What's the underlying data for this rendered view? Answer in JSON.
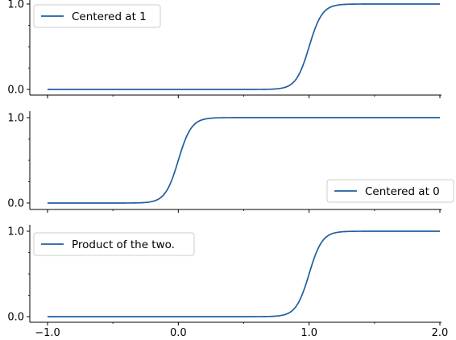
{
  "colors": {
    "series": "#1f5fa0",
    "axis": "#000000",
    "legend_border": "#cccccc"
  },
  "chart_data": [
    {
      "type": "line",
      "title": "",
      "xlabel": "",
      "ylabel": "",
      "xlim": [
        -1.0,
        2.0
      ],
      "ylim": [
        0.0,
        1.0
      ],
      "x_ticks": [
        "-1.0",
        "0.0",
        "1.0",
        "2.0"
      ],
      "y_ticks": [
        "0.0",
        "1.0"
      ],
      "show_x_tick_labels": false,
      "grid": false,
      "legend_position": "top-left",
      "series": [
        {
          "name": "Centered at 1",
          "function": "sigmoid",
          "center": 1.0,
          "steepness": 20,
          "x": [
            -1.0,
            0.5,
            0.75,
            0.85,
            0.9,
            0.95,
            1.0,
            1.05,
            1.1,
            1.15,
            1.25,
            1.5,
            2.0
          ],
          "y": [
            0.0,
            0.0,
            0.007,
            0.047,
            0.119,
            0.269,
            0.5,
            0.731,
            0.881,
            0.953,
            0.993,
            1.0,
            1.0
          ]
        }
      ]
    },
    {
      "type": "line",
      "title": "",
      "xlabel": "",
      "ylabel": "",
      "xlim": [
        -1.0,
        2.0
      ],
      "ylim": [
        0.0,
        1.0
      ],
      "x_ticks": [
        "-1.0",
        "0.0",
        "1.0",
        "2.0"
      ],
      "y_ticks": [
        "0.0",
        "1.0"
      ],
      "show_x_tick_labels": false,
      "grid": false,
      "legend_position": "bottom-right",
      "series": [
        {
          "name": "Centered at 0",
          "function": "sigmoid",
          "center": 0.0,
          "steepness": 20,
          "x": [
            -1.0,
            -0.5,
            -0.25,
            -0.15,
            -0.1,
            -0.05,
            0.0,
            0.05,
            0.1,
            0.15,
            0.25,
            0.5,
            2.0
          ],
          "y": [
            0.0,
            0.0,
            0.007,
            0.047,
            0.119,
            0.269,
            0.5,
            0.731,
            0.881,
            0.953,
            0.993,
            1.0,
            1.0
          ]
        }
      ]
    },
    {
      "type": "line",
      "title": "",
      "xlabel": "",
      "ylabel": "",
      "xlim": [
        -1.0,
        2.0
      ],
      "ylim": [
        0.0,
        1.0
      ],
      "x_ticks": [
        "-1.0",
        "0.0",
        "1.0",
        "2.0"
      ],
      "y_ticks": [
        "0.0",
        "1.0"
      ],
      "show_x_tick_labels": true,
      "grid": false,
      "legend_position": "top-left",
      "series": [
        {
          "name": "Product of the two.",
          "function": "product_of_sigmoids",
          "centers": [
            1.0,
            0.0
          ],
          "steepness": 20,
          "x": [
            -1.0,
            0.5,
            0.75,
            0.85,
            0.9,
            0.95,
            1.0,
            1.05,
            1.1,
            1.15,
            1.25,
            1.5,
            2.0
          ],
          "y": [
            0.0,
            0.0,
            0.007,
            0.047,
            0.119,
            0.269,
            0.5,
            0.731,
            0.881,
            0.953,
            0.993,
            1.0,
            1.0
          ]
        }
      ]
    }
  ]
}
